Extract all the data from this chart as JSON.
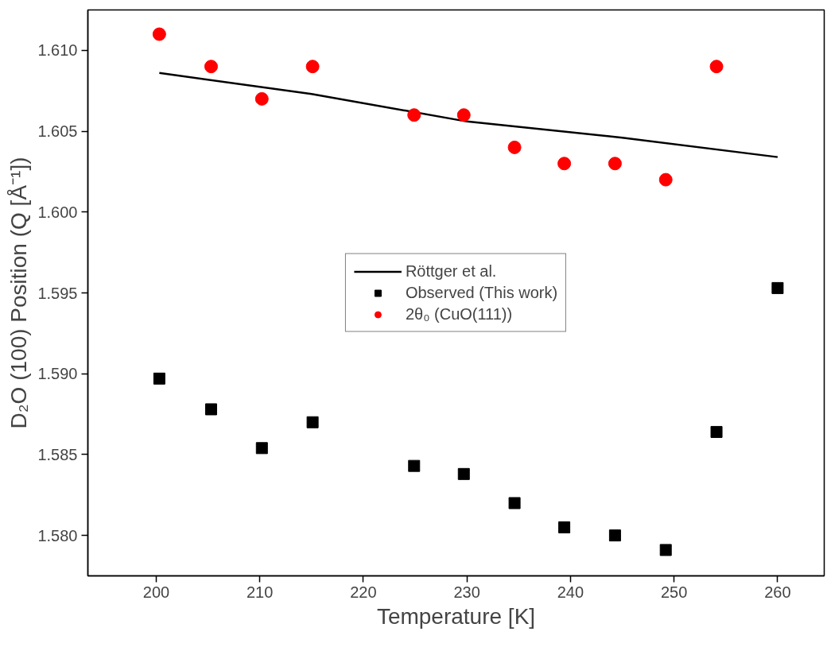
{
  "chart_data": {
    "type": "scatter",
    "xlabel": "Temperature [K]",
    "ylabel": "D₂O (100) Position (Q [Å⁻¹])",
    "xlim": [
      193.4,
      264.5
    ],
    "ylim": [
      1.5775,
      1.6125
    ],
    "xticks": [
      200,
      210,
      220,
      230,
      240,
      250,
      260
    ],
    "yticks": [
      {
        "value": 1.58,
        "label": "1.580"
      },
      {
        "value": 1.585,
        "label": "1.585"
      },
      {
        "value": 1.59,
        "label": "1.590"
      },
      {
        "value": 1.595,
        "label": "1.595"
      },
      {
        "value": 1.6,
        "label": "1.600"
      },
      {
        "value": 1.605,
        "label": "1.605"
      },
      {
        "value": 1.61,
        "label": "1.610"
      }
    ],
    "grid": false,
    "legend": "center",
    "series": [
      {
        "name": "Röttger et al.",
        "type": "line",
        "color": "#000000",
        "line_style": "solid",
        "x": [
          200.3,
          215,
          230,
          245,
          260
        ],
        "values": [
          1.6086,
          1.6073,
          1.6056,
          1.6046,
          1.6034
        ]
      },
      {
        "name": "Observed (This work)",
        "color": "#000000",
        "marker": "square",
        "x": [
          200.3,
          205.3,
          210.2,
          215.1,
          224.9,
          229.7,
          234.6,
          239.4,
          244.3,
          249.2,
          254.1,
          260
        ],
        "values": [
          1.5897,
          1.5878,
          1.5854,
          1.587,
          1.5843,
          1.5838,
          1.582,
          1.5805,
          1.58,
          1.5791,
          1.5864,
          1.5953
        ]
      },
      {
        "name": "2θ₀ (CuO(111))",
        "color": "#ff0000",
        "marker": "circle",
        "x": [
          200.3,
          205.3,
          210.2,
          215.1,
          224.9,
          229.7,
          234.6,
          239.4,
          244.3,
          249.2,
          254.1
        ],
        "values": [
          1.611,
          1.609,
          1.607,
          1.609,
          1.606,
          1.606,
          1.604,
          1.603,
          1.603,
          1.602,
          1.609
        ]
      }
    ]
  }
}
